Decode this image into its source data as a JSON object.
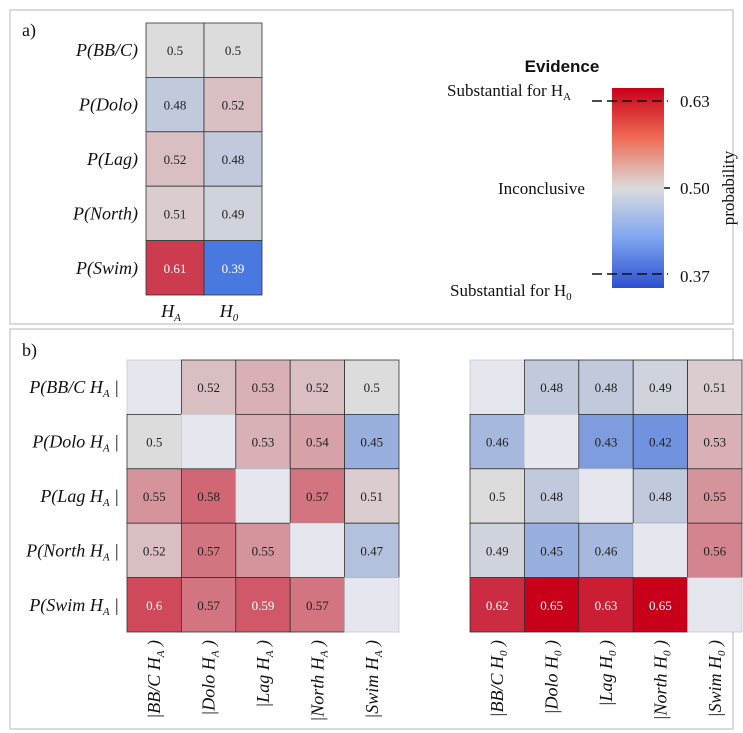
{
  "colors": {
    "low": "#3b6fe0",
    "mid": "#dcdcdc",
    "high": "#c8001a",
    "empty": "#e6e6ee"
  },
  "chart_data": [
    {
      "type": "heatmap",
      "panel_label": "a)",
      "rows": [
        {
          "head": "P(BB/C)"
        },
        {
          "head": "P(Dolo)"
        },
        {
          "head": "P(Lag)"
        },
        {
          "head": "P(North)"
        },
        {
          "head": "P(Swim)"
        }
      ],
      "columns": [
        {
          "sym": "H",
          "sub": "A"
        },
        {
          "sym": "H",
          "sub": "0"
        }
      ],
      "values": [
        [
          0.5,
          0.5
        ],
        [
          0.48,
          0.52
        ],
        [
          0.52,
          0.48
        ],
        [
          0.51,
          0.49
        ],
        [
          0.61,
          0.39
        ]
      ],
      "value_labels": [
        [
          "0.5",
          "0.5"
        ],
        [
          "0.48",
          "0.52"
        ],
        [
          "0.52",
          "0.48"
        ],
        [
          "0.51",
          "0.49"
        ],
        [
          "0.61",
          "0.39"
        ]
      ],
      "colorbar": {
        "title": "Evidence",
        "label": "probability",
        "range": [
          0.37,
          0.63
        ],
        "ticks": [
          "0.63",
          "0.50",
          "0.37"
        ],
        "annotations": {
          "high": {
            "text": "Substantial for H",
            "sub": "A"
          },
          "mid": {
            "text": "Inconclusive"
          },
          "low": {
            "text": "Substantial for H",
            "sub": "0"
          }
        }
      }
    },
    {
      "type": "heatmap",
      "panel_label": "b)",
      "rows": [
        {
          "head": "P(BB/C ",
          "sym": "H",
          "sub": "A",
          "tail": "|"
        },
        {
          "head": "P(Dolo ",
          "sym": "H",
          "sub": "A",
          "tail": "|"
        },
        {
          "head": "P(Lag ",
          "sym": "H",
          "sub": "A",
          "tail": "|"
        },
        {
          "head": "P(North ",
          "sym": "H",
          "sub": "A",
          "tail": "|"
        },
        {
          "head": "P(Swim ",
          "sym": "H",
          "sub": "A",
          "tail": "|"
        }
      ],
      "columns": [
        {
          "head": "|BB/C ",
          "sym": "H",
          "sub": "A",
          "tail": ")"
        },
        {
          "head": "|Dolo ",
          "sym": "H",
          "sub": "A",
          "tail": ")"
        },
        {
          "head": "|Lag ",
          "sym": "H",
          "sub": "A",
          "tail": ")"
        },
        {
          "head": "|North ",
          "sym": "H",
          "sub": "A",
          "tail": ")"
        },
        {
          "head": "|Swim ",
          "sym": "H",
          "sub": "A",
          "tail": ")"
        }
      ],
      "values": [
        [
          null,
          0.52,
          0.53,
          0.52,
          0.5
        ],
        [
          0.5,
          null,
          0.53,
          0.54,
          0.45
        ],
        [
          0.55,
          0.58,
          null,
          0.57,
          0.51
        ],
        [
          0.52,
          0.57,
          0.55,
          null,
          0.47
        ],
        [
          0.6,
          0.57,
          0.59,
          0.57,
          null
        ]
      ],
      "value_labels": [
        [
          "",
          "0.52",
          "0.53",
          "0.52",
          "0.5"
        ],
        [
          "0.5",
          "",
          "0.53",
          "0.54",
          "0.45"
        ],
        [
          "0.55",
          "0.58",
          "",
          "0.57",
          "0.51"
        ],
        [
          "0.52",
          "0.57",
          "0.55",
          "",
          "0.47"
        ],
        [
          "0.6",
          "0.57",
          "0.59",
          "0.57",
          ""
        ]
      ]
    },
    {
      "type": "heatmap",
      "columns": [
        {
          "head": "|BB/C ",
          "sym": "H",
          "sub": "0",
          "tail": ")"
        },
        {
          "head": "|Dolo ",
          "sym": "H",
          "sub": "0",
          "tail": ")"
        },
        {
          "head": "|Lag ",
          "sym": "H",
          "sub": "0",
          "tail": ")"
        },
        {
          "head": "|North ",
          "sym": "H",
          "sub": "0",
          "tail": ")"
        },
        {
          "head": "|Swim ",
          "sym": "H",
          "sub": "0",
          "tail": ")"
        }
      ],
      "values": [
        [
          null,
          0.48,
          0.48,
          0.49,
          0.51
        ],
        [
          0.46,
          null,
          0.43,
          0.42,
          0.53
        ],
        [
          0.5,
          0.48,
          null,
          0.48,
          0.55
        ],
        [
          0.49,
          0.45,
          0.46,
          null,
          0.56
        ],
        [
          0.62,
          0.65,
          0.63,
          0.65,
          null
        ]
      ],
      "value_labels": [
        [
          "",
          "0.48",
          "0.48",
          "0.49",
          "0.51"
        ],
        [
          "0.46",
          "",
          "0.43",
          "0.42",
          "0.53"
        ],
        [
          "0.5",
          "0.48",
          "",
          "0.48",
          "0.55"
        ],
        [
          "0.49",
          "0.45",
          "0.46",
          "",
          "0.56"
        ],
        [
          "0.62",
          "0.65",
          "0.63",
          "0.65",
          ""
        ]
      ]
    }
  ]
}
